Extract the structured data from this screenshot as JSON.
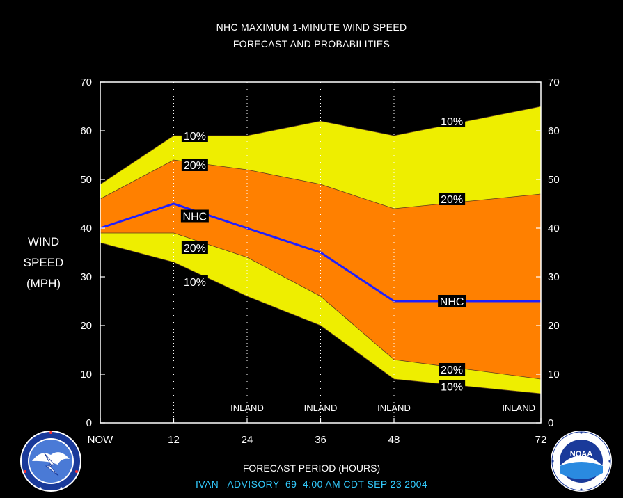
{
  "colors": {
    "background": "#000000",
    "band_10": "#eeee00",
    "band_20": "#ff8000",
    "nhc_line": "#1f1fff",
    "text": "#ffffff",
    "footer": "#33ccff"
  },
  "header": {
    "title_line1": "NHC MAXIMUM 1-MINUTE WIND SPEED",
    "title_line2": "FORECAST AND PROBABILITIES"
  },
  "axes": {
    "ylabel_lines": [
      "WIND",
      "SPEED",
      "(MPH)"
    ],
    "xlabel": "FORECAST PERIOD (HOURS)"
  },
  "footer": {
    "storm": "IVAN",
    "advisory_label": "ADVISORY",
    "advisory_number": "69",
    "time": "4:00 AM CDT SEP 23 2004"
  },
  "logos": {
    "left": "national-weather-service-logo",
    "right": "noaa-logo",
    "noaa_text": "NOAA"
  },
  "chart_data": {
    "type": "area",
    "title": "NHC MAXIMUM 1-MINUTE WIND SPEED FORECAST AND PROBABILITIES",
    "xlabel": "FORECAST PERIOD (HOURS)",
    "ylabel": "WIND SPEED (MPH)",
    "xlim": [
      0,
      72
    ],
    "ylim": [
      0,
      70
    ],
    "x_ticks": [
      {
        "value": 0,
        "label": "NOW"
      },
      {
        "value": 12,
        "label": "12"
      },
      {
        "value": 24,
        "label": "24"
      },
      {
        "value": 36,
        "label": "36"
      },
      {
        "value": 48,
        "label": "48"
      },
      {
        "value": 72,
        "label": "72"
      }
    ],
    "y_ticks": [
      0,
      10,
      20,
      30,
      40,
      50,
      60,
      70
    ],
    "grid_x": [
      12,
      24,
      36,
      48
    ],
    "x": [
      0,
      12,
      24,
      36,
      48,
      72
    ],
    "series": [
      {
        "name": "10%",
        "role": "upper",
        "values": [
          49,
          59,
          59,
          62,
          59,
          65
        ]
      },
      {
        "name": "20%",
        "role": "upper",
        "values": [
          46,
          54,
          52,
          49,
          44,
          47
        ]
      },
      {
        "name": "NHC",
        "role": "forecast",
        "values": [
          40,
          45,
          40,
          35,
          25,
          25
        ]
      },
      {
        "name": "20%",
        "role": "lower",
        "values": [
          39,
          39,
          34,
          26,
          13,
          9
        ]
      },
      {
        "name": "10%",
        "role": "lower",
        "values": [
          37,
          33,
          26,
          20,
          9,
          6
        ]
      }
    ],
    "inland_labels": [
      {
        "x": 24,
        "text": "INLAND"
      },
      {
        "x": 36,
        "text": "INLAND"
      },
      {
        "x": 48,
        "text": "INLAND"
      },
      {
        "x": 72,
        "text": "INLAND"
      }
    ],
    "series_labels": [
      {
        "text": "10%",
        "x": 15,
        "y": 59
      },
      {
        "text": "20%",
        "x": 15,
        "y": 53
      },
      {
        "text": "NHC",
        "x": 15,
        "y": 42.5
      },
      {
        "text": "20%",
        "x": 15,
        "y": 36
      },
      {
        "text": "10%",
        "x": 15,
        "y": 29
      },
      {
        "text": "10%",
        "x": 57,
        "y": 62
      },
      {
        "text": "20%",
        "x": 57,
        "y": 46
      },
      {
        "text": "NHC",
        "x": 57,
        "y": 25
      },
      {
        "text": "20%",
        "x": 57,
        "y": 11
      },
      {
        "text": "10%",
        "x": 57,
        "y": 7.5
      }
    ]
  }
}
